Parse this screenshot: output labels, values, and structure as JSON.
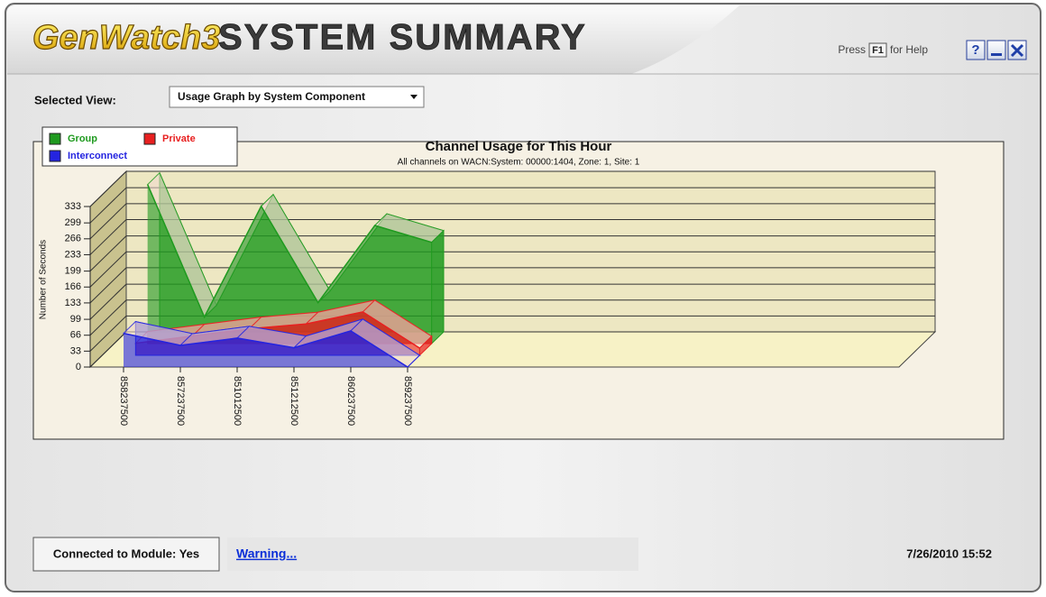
{
  "header": {
    "logo": "GenWatch3",
    "title": "SYSTEM SUMMARY",
    "help_prefix": "Press",
    "help_key": "F1",
    "help_suffix": "for Help",
    "help_button": "?"
  },
  "view": {
    "label": "Selected View:",
    "selected": "Usage Graph by System Component"
  },
  "chart_data": {
    "type": "area3d",
    "title": "Channel Usage for This Hour",
    "subtitle": "All channels on WACN:System: 00000:1404, Zone: 1, Site: 1",
    "y_label": "Number of Seconds",
    "categories": [
      "858237500",
      "857237500",
      "851012500",
      "851212500",
      "860237500",
      "859237500"
    ],
    "series": [
      {
        "name": "Group",
        "color": "#1f9a1f",
        "values": [
          330,
          55,
          285,
          85,
          245,
          210
        ]
      },
      {
        "name": "Private",
        "color": "#e82020",
        "values": [
          25,
          40,
          55,
          65,
          90,
          15
        ]
      },
      {
        "name": "Interconnect",
        "color": "#2424e0",
        "values": [
          70,
          45,
          60,
          40,
          75,
          0
        ]
      }
    ],
    "ylim": [
      0,
      333
    ],
    "yticks": [
      0,
      33,
      66,
      99,
      133,
      166,
      199,
      233,
      266,
      299,
      333
    ],
    "grid": true
  },
  "status": {
    "connection": "Connected to Module: Yes",
    "warning": "Warning...",
    "timestamp": "7/26/2010 15:52"
  }
}
